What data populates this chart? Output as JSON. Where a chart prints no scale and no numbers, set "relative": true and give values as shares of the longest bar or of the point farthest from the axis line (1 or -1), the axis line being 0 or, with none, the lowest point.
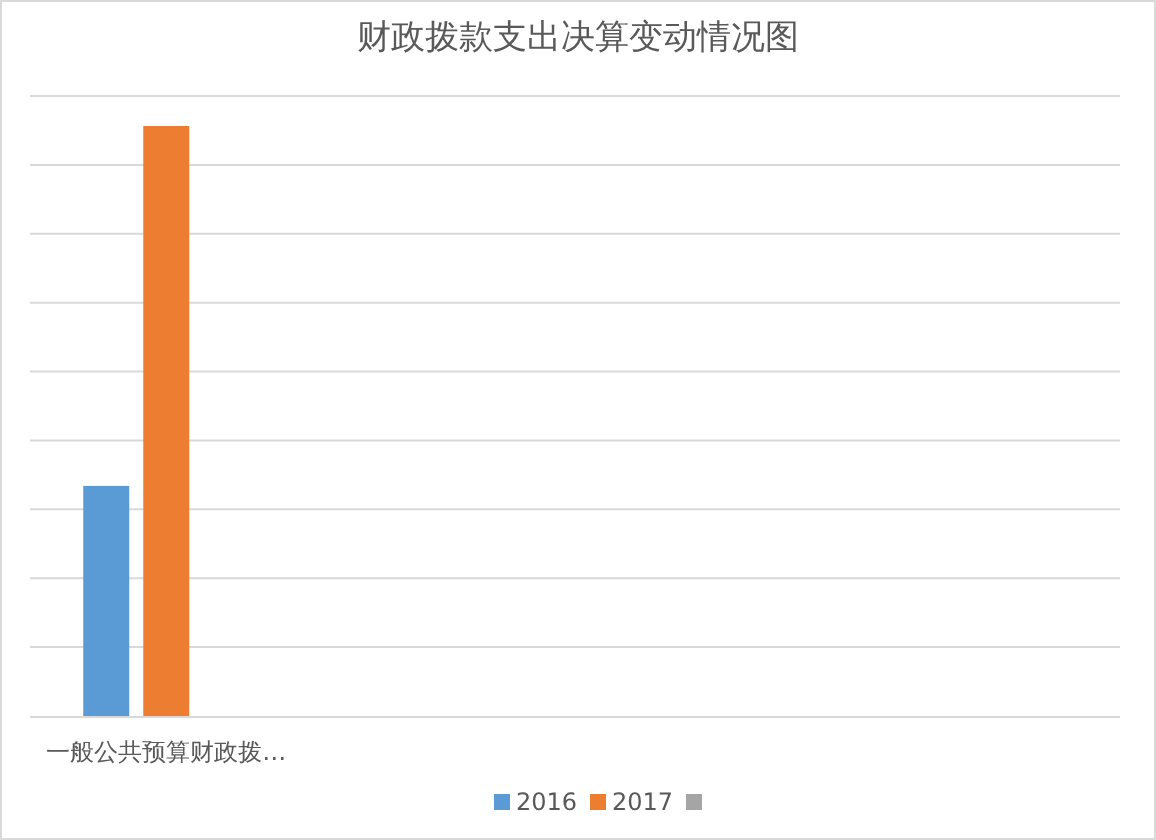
{
  "chart_data": {
    "type": "bar",
    "title": "财政拨款支出决算变动情况图",
    "relative": true,
    "grid": "y",
    "legend": "bottom",
    "categories": [
      "一般公共预算财政拨…"
    ],
    "series": [
      {
        "name": "2016",
        "color": "#5b9bd5",
        "values": [
          0.39
        ]
      },
      {
        "name": "2017",
        "color": "#ed7d31",
        "values": [
          1
        ]
      },
      {
        "color": "#a5a5a5",
        "values": [
          null
        ]
      }
    ]
  }
}
